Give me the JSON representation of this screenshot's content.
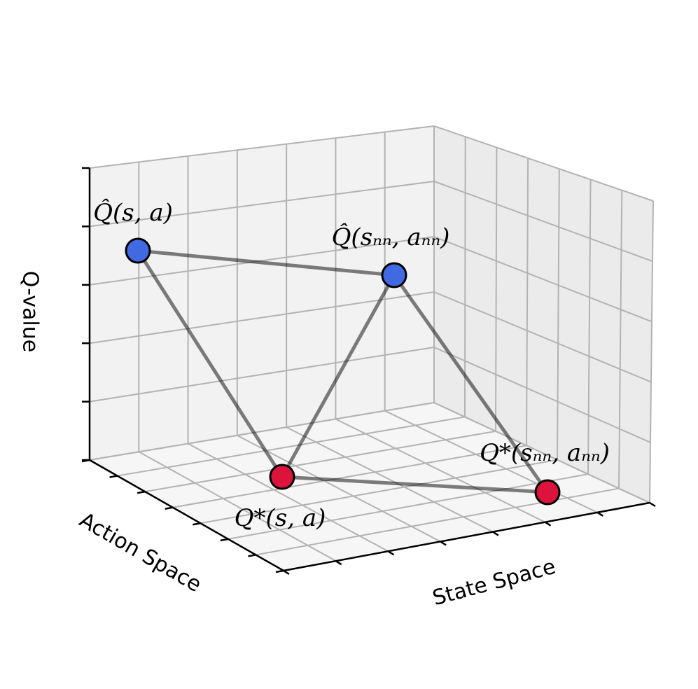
{
  "axes": {
    "x_label": "State Space",
    "y_label": "Action Space",
    "z_label": "Q-value"
  },
  "nodes": [
    {
      "label": "Q̂(s, a)",
      "color": "#4169e1"
    },
    {
      "label": "Q̂(sₙₙ, aₙₙ)",
      "color": "#4169e1"
    },
    {
      "label": "Q*(s, a)",
      "color": "#dc143c"
    },
    {
      "label": "Q*(sₙₙ, aₙₙ)",
      "color": "#dc143c"
    }
  ]
}
